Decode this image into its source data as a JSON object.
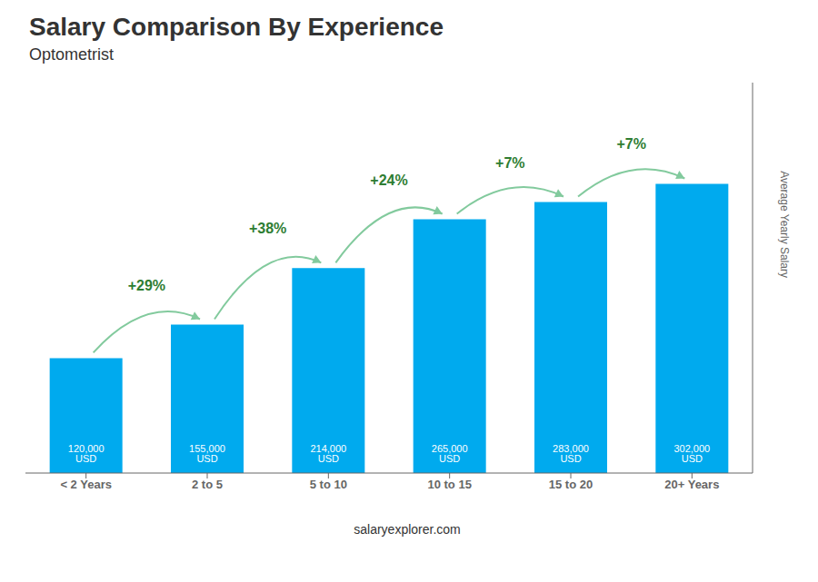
{
  "chart_data": {
    "type": "bar",
    "title": "Salary Comparison By Experience",
    "subtitle": "Optometrist",
    "ylabel": "Average Yearly Salary",
    "footer": "salaryexplorer.com",
    "categories": [
      "< 2 Years",
      "2 to 5",
      "5 to 10",
      "10 to 15",
      "15 to 20",
      "20+ Years"
    ],
    "values": [
      120000,
      155000,
      214000,
      265000,
      283000,
      302000
    ],
    "value_labels": [
      "120,000 USD",
      "155,000 USD",
      "214,000 USD",
      "265,000 USD",
      "283,000 USD",
      "302,000 USD"
    ],
    "data_labels": true,
    "annotations": [
      "+29%",
      "+38%",
      "+24%",
      "+7%",
      "+7%"
    ],
    "color": "#00AAEE",
    "ylim": [
      0,
      407700
    ],
    "tick_labels": "x",
    "grid": false
  }
}
